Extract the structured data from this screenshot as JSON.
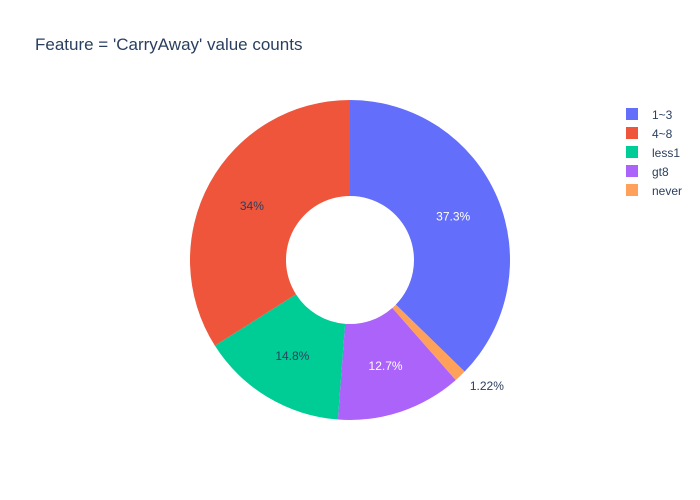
{
  "chart_data": {
    "type": "pie",
    "title": "Feature = 'CarryAway' value counts",
    "hole": 0.4,
    "sort": "descending",
    "direction": "clockwise",
    "rotation_deg": 0,
    "legend_position": "top-right",
    "slices": [
      {
        "label": "1~3",
        "percent": 37.3,
        "text": "37.3%",
        "color": "#636efa"
      },
      {
        "label": "4~8",
        "percent": 34.0,
        "text": "34%",
        "color": "#ef553b"
      },
      {
        "label": "less1",
        "percent": 14.8,
        "text": "14.8%",
        "color": "#00cc96"
      },
      {
        "label": "gt8",
        "percent": 12.7,
        "text": "12.7%",
        "color": "#ab63fa"
      },
      {
        "label": "never",
        "percent": 1.22,
        "text": "1.22%",
        "color": "#ffa15a"
      }
    ],
    "legend_order": [
      "1~3",
      "4~8",
      "less1",
      "gt8",
      "never"
    ],
    "plot_order": [
      "1~3",
      "never",
      "gt8",
      "less1",
      "4~8"
    ]
  }
}
